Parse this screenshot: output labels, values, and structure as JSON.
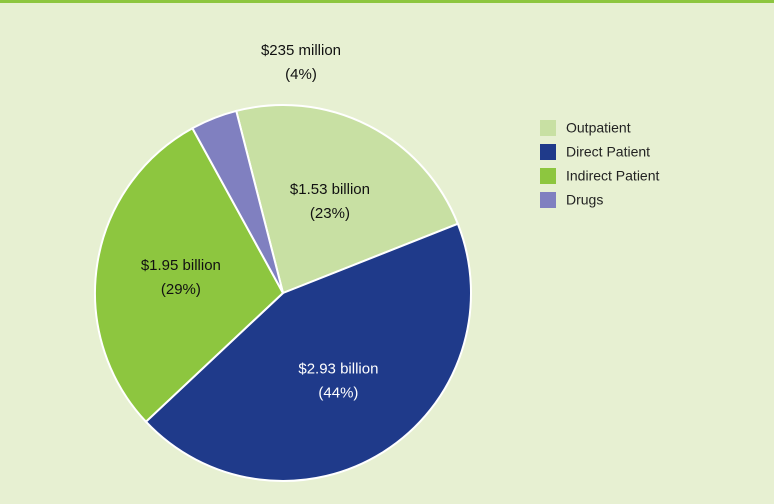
{
  "chart_data": {
    "type": "pie",
    "categories": [
      "Outpatient",
      "Direct Patient",
      "Indirect Patient",
      "Drugs"
    ],
    "values": [
      23,
      44,
      29,
      4
    ],
    "value_labels": [
      "(23%)",
      "(44%)",
      "(29%)",
      "(4%)"
    ],
    "amounts": [
      "$1.53 billion",
      "$2.93 billion",
      "$1.95 billion",
      "$235 million"
    ],
    "colors": [
      "#c8e0a3",
      "#1f3a8a",
      "#8dc63f",
      "#8080c0"
    ],
    "legend": "right"
  }
}
